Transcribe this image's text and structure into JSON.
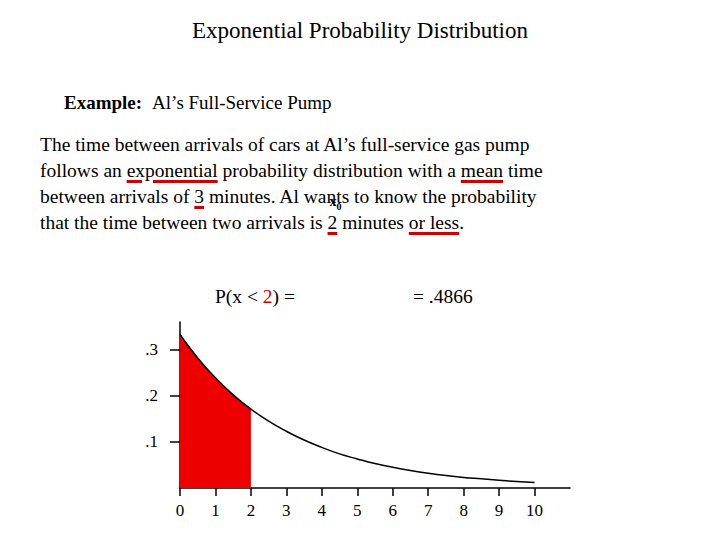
{
  "slide": {
    "title": "Exponential Probability Distribution",
    "example_label": "Example:",
    "example_name": "Al’s Full-Service Pump",
    "paragraph": [
      [
        {
          "text": "The time between arrivals of cars at Al’s full-service gas pump"
        }
      ],
      [
        {
          "text": "follows an "
        },
        {
          "text": "exponential",
          "underline": true
        },
        {
          "text": " probability distribution with a "
        },
        {
          "text": "mean",
          "underline": true
        },
        {
          "text": " time"
        }
      ],
      [
        {
          "text": "between arrivals of "
        },
        {
          "text": "3",
          "underline": true
        },
        {
          "text": " minutes. Al wants to know the probability"
        }
      ],
      [
        {
          "text": "that the time between two arrivals is "
        },
        {
          "text": "2",
          "underline": true,
          "above": {
            "text": "x",
            "subscript": "0"
          }
        },
        {
          "text": " minutes "
        },
        {
          "text": "or less",
          "underline": true
        },
        {
          "text": "."
        }
      ]
    ],
    "formula": {
      "left": [
        {
          "text": "P(x < "
        },
        {
          "text": "2",
          "color": "#cc0000"
        },
        {
          "text": ") ="
        }
      ],
      "right": "= .4866"
    }
  },
  "chart_data": {
    "type": "line",
    "x": [
      0,
      0.5,
      1,
      1.5,
      2,
      2.5,
      3,
      3.5,
      4,
      4.5,
      5,
      5.5,
      6,
      6.5,
      7,
      7.5,
      8,
      8.5,
      9,
      9.5,
      10
    ],
    "values": [
      0.333,
      0.282,
      0.239,
      0.202,
      0.171,
      0.145,
      0.123,
      0.104,
      0.088,
      0.074,
      0.063,
      0.053,
      0.045,
      0.038,
      0.032,
      0.027,
      0.023,
      0.02,
      0.017,
      0.014,
      0.012
    ],
    "color": "#000000",
    "shade": {
      "from": 0,
      "to": 2,
      "color": "#ee0000"
    },
    "xlim": [
      0,
      11
    ],
    "xticks": [
      0,
      1,
      2,
      3,
      4,
      5,
      6,
      7,
      8,
      9,
      10
    ],
    "ylim": [
      0,
      0.36
    ],
    "yticks": [
      {
        "value": 0.1,
        "label": ".1"
      },
      {
        "value": 0.2,
        "label": ".2"
      },
      {
        "value": 0.3,
        "label": ".3"
      }
    ],
    "grid": false
  }
}
